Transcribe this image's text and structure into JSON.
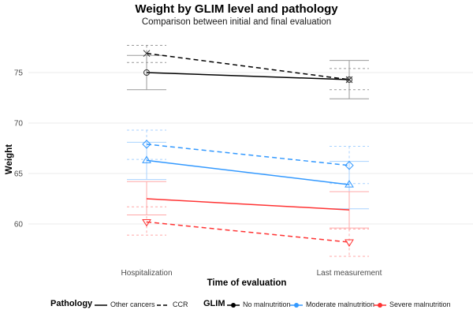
{
  "chart_data": {
    "type": "line",
    "title": "Weight by GLIM level and pathology",
    "subtitle": "Comparison between initial and final evaluation",
    "xlabel": "Time of evaluation",
    "ylabel": "Weight",
    "categories": [
      "Hospitalization",
      "Last measurement"
    ],
    "yticks": [
      60,
      65,
      70,
      75
    ],
    "ylim": [
      56.3,
      78.3
    ],
    "grid": true,
    "legend_position": "bottom",
    "legend": {
      "pathology_title": "Pathology",
      "pathology": [
        {
          "name": "Other cancers",
          "linestyle": "solid"
        },
        {
          "name": "CCR",
          "linestyle": "dashed"
        }
      ],
      "glim_title": "GLIM",
      "glim": [
        {
          "name": "No malnutrition",
          "color": "#000000"
        },
        {
          "name": "Moderate malnutrition",
          "color": "#3399ff"
        },
        {
          "name": "Severe malnutrition",
          "color": "#ff3333"
        }
      ]
    },
    "series": [
      {
        "glim": "No malnutrition",
        "pathology": "Other cancers",
        "color": "#000000",
        "marker": "circle",
        "values": [
          75.0,
          74.3
        ],
        "lower": [
          73.3,
          72.4
        ],
        "upper": [
          76.7,
          76.2
        ]
      },
      {
        "glim": "No malnutrition",
        "pathology": "CCR",
        "color": "#000000",
        "marker": "x",
        "values": [
          76.9,
          74.3
        ],
        "lower": [
          76.0,
          73.3
        ],
        "upper": [
          77.7,
          75.4
        ]
      },
      {
        "glim": "Moderate malnutrition",
        "pathology": "Other cancers",
        "color": "#3399ff",
        "marker": "triangle",
        "values": [
          66.3,
          63.9
        ],
        "lower": [
          64.4,
          61.5
        ],
        "upper": [
          68.1,
          66.2
        ]
      },
      {
        "glim": "Moderate malnutrition",
        "pathology": "CCR",
        "color": "#3399ff",
        "marker": "diamond",
        "values": [
          67.9,
          65.8
        ],
        "lower": [
          66.4,
          64.0
        ],
        "upper": [
          69.3,
          67.7
        ]
      },
      {
        "glim": "Severe malnutrition",
        "pathology": "Other cancers",
        "color": "#ff3333",
        "marker": "none",
        "values": [
          62.5,
          61.4
        ],
        "lower": [
          60.9,
          59.6
        ],
        "upper": [
          64.2,
          63.2
        ]
      },
      {
        "glim": "Severe malnutrition",
        "pathology": "CCR",
        "color": "#ff3333",
        "marker": "triangle-down",
        "values": [
          60.2,
          58.2
        ],
        "lower": [
          58.9,
          56.8
        ],
        "upper": [
          61.7,
          59.5
        ]
      }
    ]
  }
}
